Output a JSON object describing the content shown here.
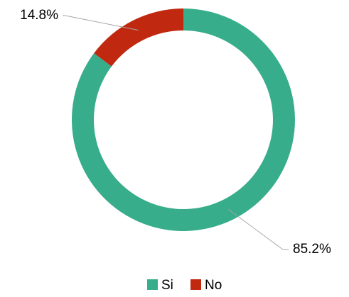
{
  "chart_data": {
    "type": "donut",
    "categories": [
      "Si",
      "No"
    ],
    "values": [
      85.2,
      14.8
    ],
    "value_labels": [
      "85.2%",
      "14.8%"
    ],
    "colors": [
      "#37ad8b",
      "#c0290f"
    ],
    "legend": "bottom"
  }
}
